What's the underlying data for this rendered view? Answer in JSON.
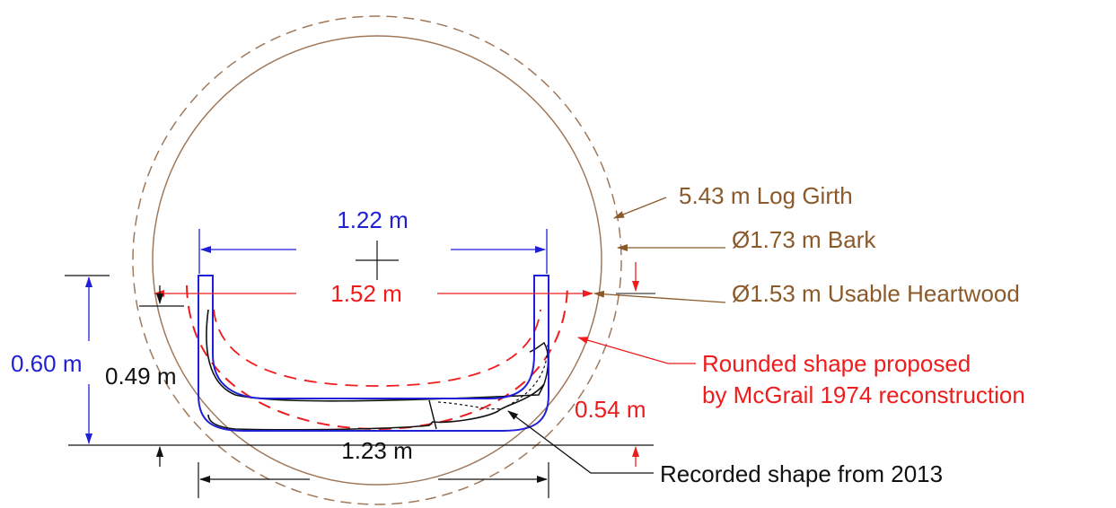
{
  "labels": {
    "inner_width": "1.22 m",
    "heartwood_width": "1.52 m",
    "total_height": "0.60 m",
    "inner_depth": "0.49 m",
    "bottom_width": "1.23 m",
    "mcgrail_depth": "0.54 m",
    "log_girth": "5.43 m Log Girth",
    "bark_diameter": "Ø1.73 m Bark",
    "heartwood_diameter": "Ø1.53 m Usable Heartwood",
    "rounded_shape_line1": "Rounded shape proposed",
    "rounded_shape_line2": "by McGrail 1974 reconstruction",
    "recorded_shape": "Recorded shape from 2013"
  },
  "colors": {
    "blue": "#1f1fd6",
    "red": "#ee1c1c",
    "brown": "#8b5a2b",
    "bark": "#a0785a",
    "black": "#111111"
  }
}
